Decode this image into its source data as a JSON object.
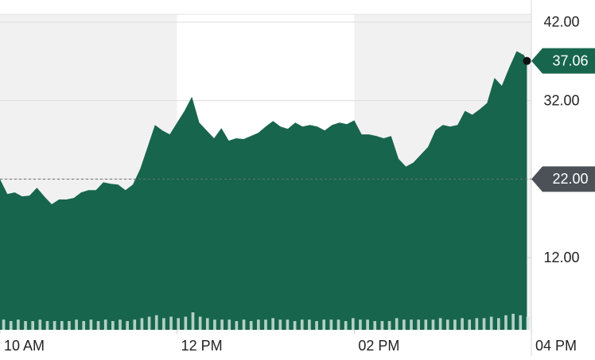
{
  "chart_data": {
    "type": "area",
    "x": [
      600,
      605,
      610,
      615,
      620,
      625,
      630,
      635,
      640,
      645,
      650,
      655,
      660,
      665,
      670,
      675,
      680,
      685,
      690,
      695,
      700,
      705,
      710,
      715,
      720,
      725,
      730,
      735,
      740,
      745,
      750,
      755,
      760,
      765,
      770,
      775,
      780,
      785,
      790,
      795,
      800,
      805,
      810,
      815,
      820,
      825,
      830,
      835,
      840,
      845,
      850,
      855,
      860,
      865,
      870,
      875,
      880,
      885,
      890,
      895,
      900,
      905,
      910,
      915,
      920,
      925,
      930,
      935,
      940,
      945,
      950,
      955,
      957
    ],
    "series": [
      {
        "color": "#17654c",
        "values": [
          22.0,
          20.1,
          20.3,
          19.8,
          19.9,
          20.9,
          19.8,
          18.8,
          19.4,
          19.4,
          19.6,
          20.3,
          20.6,
          20.6,
          21.6,
          21.4,
          21.3,
          20.6,
          21.3,
          23.3,
          26.1,
          28.9,
          28.2,
          27.7,
          29.2,
          30.7,
          32.5,
          29.2,
          28.2,
          27.2,
          28.5,
          26.9,
          27.2,
          27.1,
          27.5,
          27.9,
          28.7,
          29.4,
          28.7,
          28.4,
          29.2,
          28.7,
          28.9,
          28.7,
          28.2,
          28.9,
          29.2,
          29.0,
          29.5,
          27.7,
          27.7,
          27.5,
          27.2,
          27.5,
          24.6,
          23.6,
          24.1,
          25.1,
          26.1,
          28.2,
          28.9,
          28.7,
          28.9,
          30.7,
          30.2,
          30.9,
          31.7,
          34.9,
          33.9,
          36.2,
          38.3,
          37.8,
          37.06
        ]
      }
    ],
    "volume": [
      7,
      6,
      7,
      6,
      6,
      7,
      6,
      6,
      6,
      6,
      7,
      6,
      7,
      6,
      7,
      6,
      7,
      6,
      7,
      8,
      9,
      10,
      8,
      9,
      8,
      9,
      12,
      9,
      8,
      7,
      7,
      7,
      6,
      7,
      6,
      7,
      7,
      8,
      7,
      7,
      6,
      7,
      7,
      6,
      7,
      7,
      7,
      6,
      8,
      7,
      7,
      6,
      6,
      6,
      8,
      7,
      7,
      7,
      7,
      7,
      8,
      7,
      7,
      8,
      7,
      8,
      8,
      9,
      8,
      10,
      11,
      10,
      9
    ],
    "xlim": [
      600,
      960
    ],
    "ylim": [
      2.8,
      43
    ],
    "xticks": [
      {
        "value": 600,
        "label": "10 AM"
      },
      {
        "value": 720,
        "label": "12 PM"
      },
      {
        "value": 840,
        "label": "02 PM"
      },
      {
        "value": 960,
        "label": "04 PM"
      }
    ],
    "yticks": [
      {
        "value": 12,
        "label": "12.00"
      },
      {
        "value": 22,
        "label": "22.00"
      },
      {
        "value": 32,
        "label": "32.00"
      },
      {
        "value": 42,
        "label": "42.00"
      }
    ],
    "previous_close": {
      "value": 22,
      "label": "22.00"
    },
    "last_price": 37.06,
    "grid": true
  }
}
